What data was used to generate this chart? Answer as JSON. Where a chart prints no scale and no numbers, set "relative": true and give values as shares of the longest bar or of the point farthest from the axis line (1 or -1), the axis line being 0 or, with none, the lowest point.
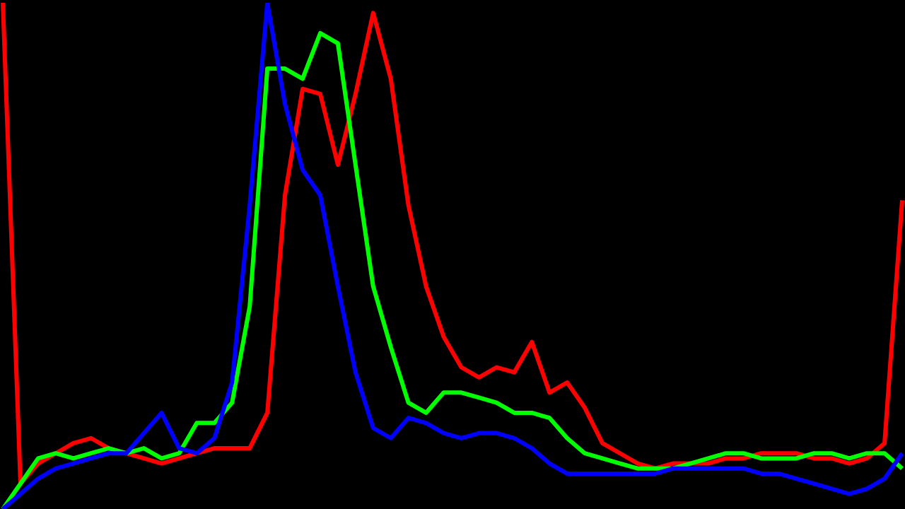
{
  "chart_data": {
    "type": "line",
    "relative": true,
    "tick_labels": false,
    "legend": false,
    "marker": "none",
    "line_style": "solid",
    "categories": [
      null,
      null,
      null,
      null,
      null,
      null,
      null,
      null,
      null,
      null,
      null,
      null,
      null,
      null,
      null,
      null,
      null,
      null,
      null,
      null,
      null,
      null,
      null,
      null,
      null,
      null,
      null,
      null,
      null,
      null,
      null,
      null,
      null,
      null,
      null,
      null,
      null,
      null,
      null,
      null,
      null,
      null,
      null,
      null,
      null,
      null,
      null,
      null,
      null,
      null,
      null,
      null
    ],
    "series": [
      {
        "color": "#0000ff",
        "values": [
          0,
          0.03,
          0.06,
          0.08,
          0.09,
          0.1,
          0.11,
          0.11,
          0.15,
          0.19,
          0.12,
          0.11,
          0.14,
          0.25,
          0.6,
          1,
          0.8,
          0.67,
          0.62,
          0.44,
          0.27,
          0.16,
          0.14,
          0.18,
          0.17,
          0.15,
          0.14,
          0.15,
          0.15,
          0.14,
          0.12,
          0.09,
          0.07,
          0.07,
          0.07,
          0.07,
          0.07,
          0.07,
          0.08,
          0.08,
          0.08,
          0.08,
          0.08,
          0.07,
          0.07,
          0.06,
          0.05,
          0.04,
          0.03,
          0.04,
          0.06,
          0.11
        ]
      },
      {
        "color": "#00ff00",
        "values": [
          0,
          0.05,
          0.1,
          0.11,
          0.1,
          0.11,
          0.12,
          0.11,
          0.12,
          0.1,
          0.11,
          0.17,
          0.17,
          0.21,
          0.4,
          0.87,
          0.87,
          0.85,
          0.94,
          0.92,
          0.68,
          0.44,
          0.32,
          0.21,
          0.19,
          0.23,
          0.23,
          0.22,
          0.21,
          0.19,
          0.19,
          0.18,
          0.14,
          0.11,
          0.1,
          0.09,
          0.08,
          0.08,
          0.08,
          0.09,
          0.1,
          0.11,
          0.11,
          0.1,
          0.1,
          0.1,
          0.11,
          0.11,
          0.1,
          0.11,
          0.11,
          0.08
        ]
      },
      {
        "color": "#ff0000",
        "values": [
          1,
          0.05,
          0.09,
          0.11,
          0.13,
          0.14,
          0.12,
          0.11,
          0.1,
          0.09,
          0.1,
          0.11,
          0.12,
          0.12,
          0.12,
          0.19,
          0.62,
          0.83,
          0.82,
          0.68,
          0.82,
          0.98,
          0.85,
          0.6,
          0.44,
          0.34,
          0.28,
          0.26,
          0.28,
          0.27,
          0.33,
          0.23,
          0.25,
          0.2,
          0.13,
          0.11,
          0.09,
          0.08,
          0.09,
          0.09,
          0.09,
          0.1,
          0.1,
          0.11,
          0.11,
          0.11,
          0.1,
          0.1,
          0.09,
          0.1,
          0.13,
          0.61
        ]
      }
    ]
  }
}
